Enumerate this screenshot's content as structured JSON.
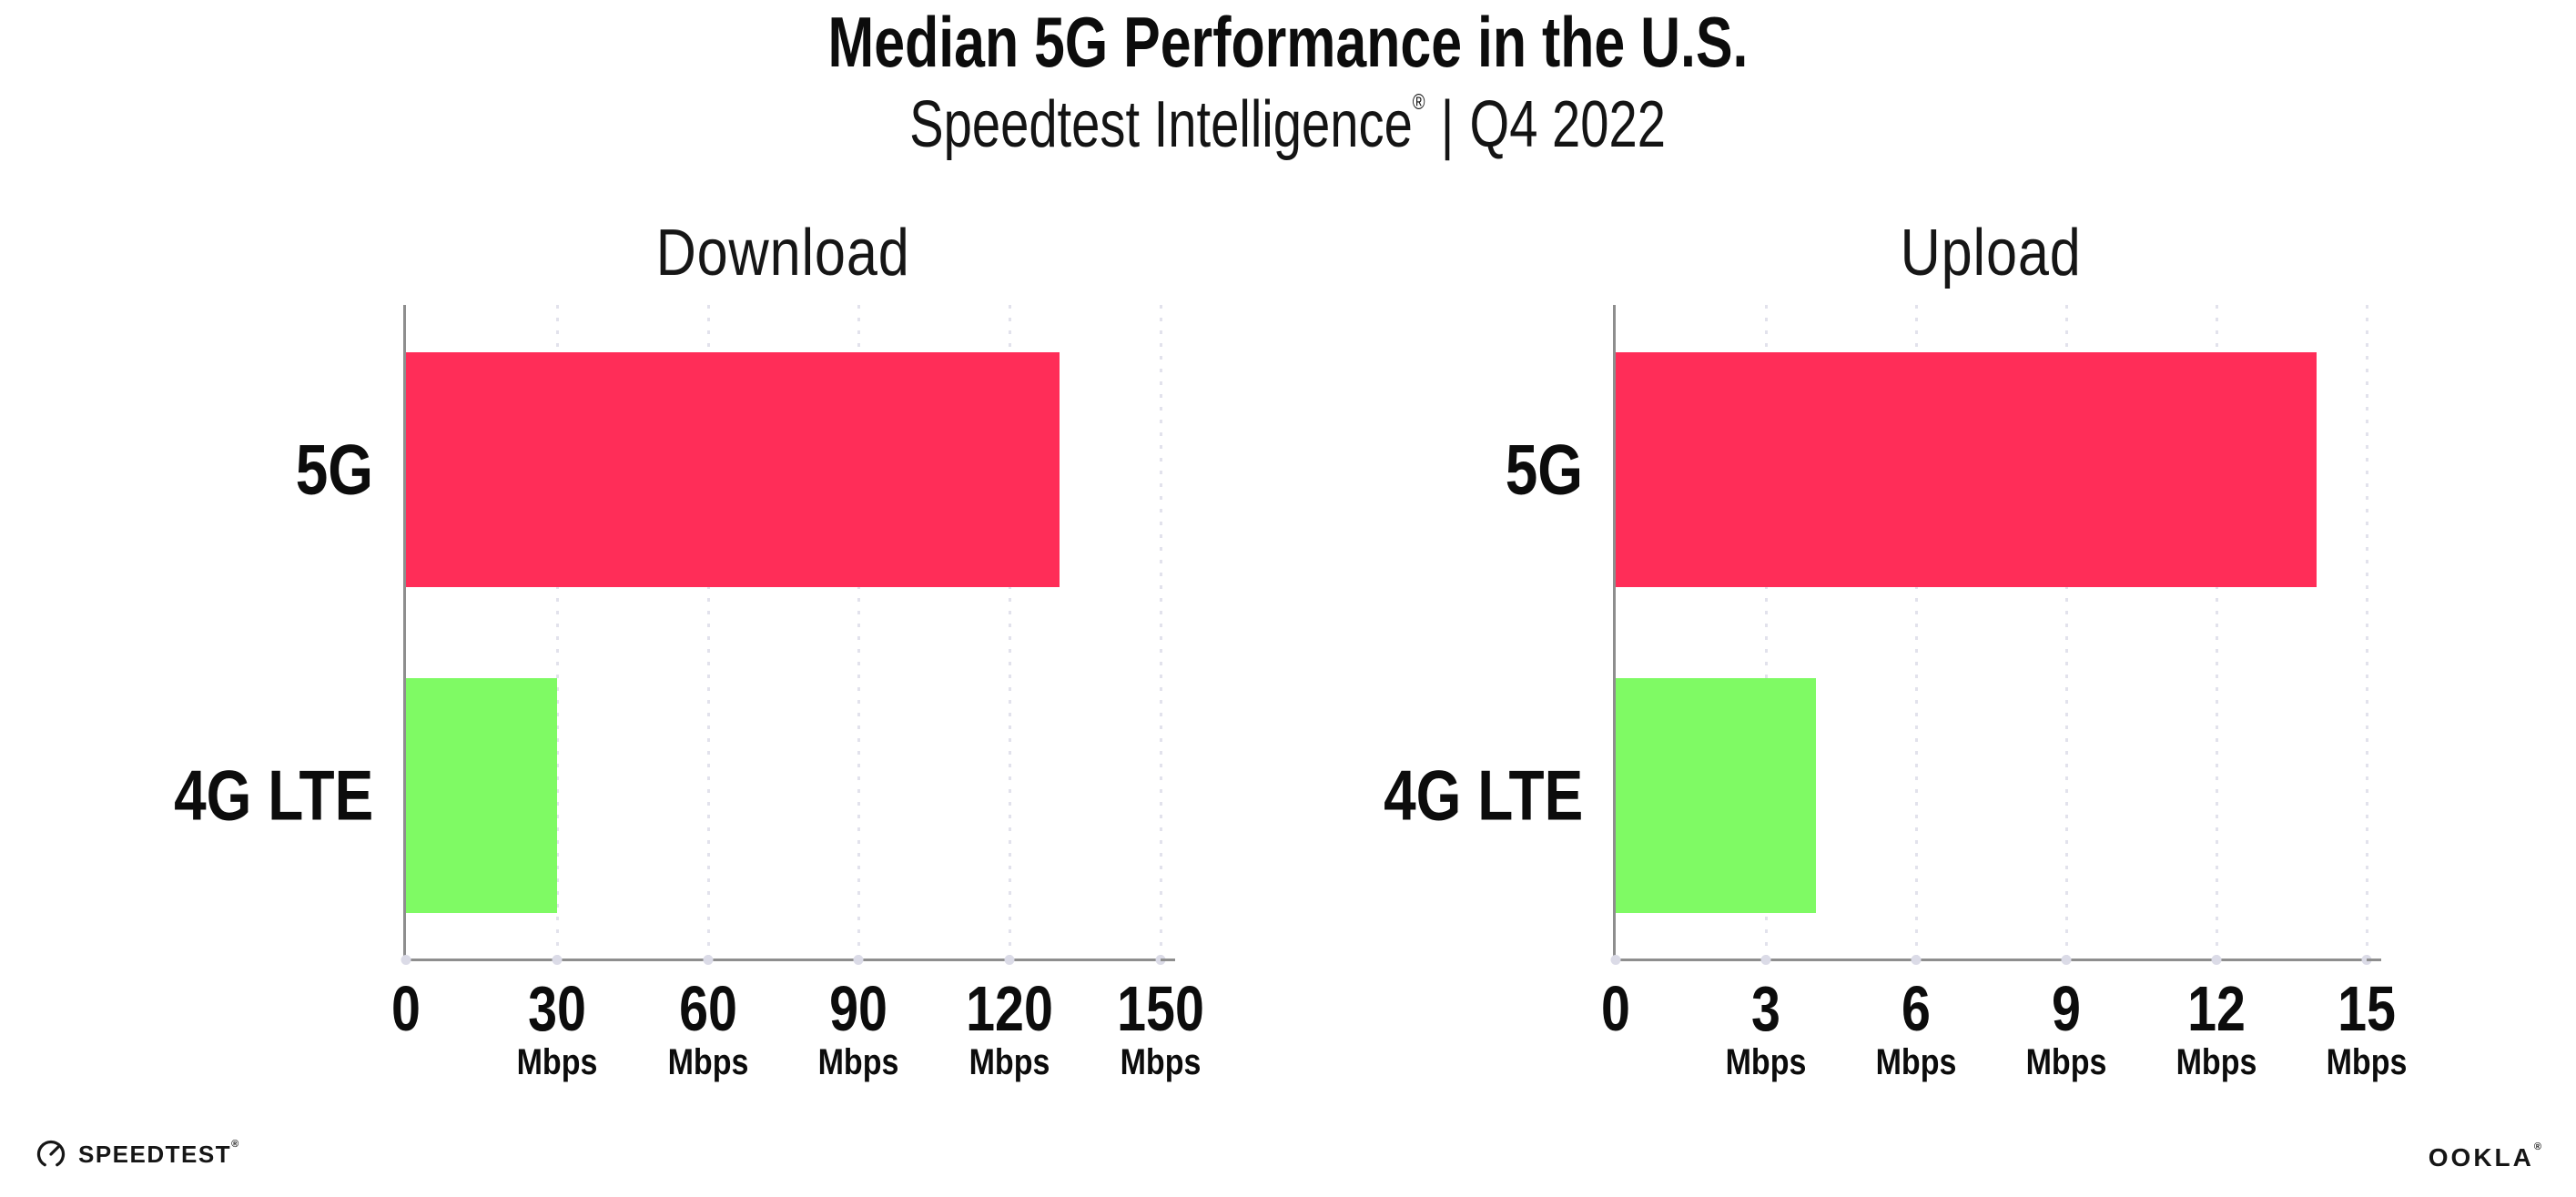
{
  "header": {
    "title": "Median 5G Performance in the U.S.",
    "subtitle": {
      "brand": "Speedtest Intelligence",
      "registered": "®",
      "separator": "|",
      "period": "Q4 2022"
    }
  },
  "chart_data": [
    {
      "type": "bar",
      "orientation": "horizontal",
      "title": "Download",
      "categories": [
        "5G",
        "4G LTE"
      ],
      "values": [
        130,
        30
      ],
      "unit": "Mbps",
      "xlim": [
        0,
        150
      ],
      "xticks": [
        0,
        30,
        60,
        90,
        120,
        150
      ],
      "bar_colors": [
        "#FF2D58",
        "#7FFA64"
      ],
      "grid": "dotted-vertical",
      "legend": "none"
    },
    {
      "type": "bar",
      "orientation": "horizontal",
      "title": "Upload",
      "categories": [
        "5G",
        "4G LTE"
      ],
      "values": [
        14,
        4
      ],
      "unit": "Mbps",
      "xlim": [
        0,
        15
      ],
      "xticks": [
        0,
        3,
        6,
        9,
        12,
        15
      ],
      "bar_colors": [
        "#FF2D58",
        "#7FFA64"
      ],
      "grid": "dotted-vertical",
      "legend": "none"
    }
  ],
  "colors": {
    "bar_5g": "#FF2D58",
    "bar_4g_lte": "#7FFA64",
    "axis": "#8E8E8E",
    "gridline": "#E2E2EC",
    "text": "#0C0C0C",
    "background": "#FFFFFF"
  },
  "footer": {
    "speedtest_label": "SPEEDTEST",
    "speedtest_mark": "®",
    "ookla_label": "OOKLA",
    "ookla_mark": "®"
  }
}
